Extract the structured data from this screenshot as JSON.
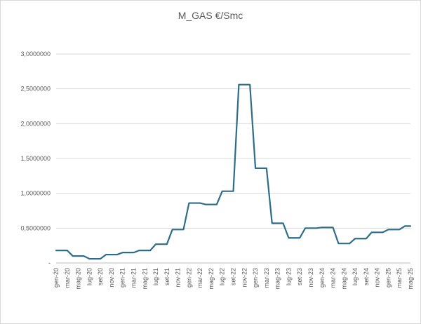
{
  "chart_data": {
    "type": "line",
    "title": "M_GAS €/Smc",
    "xlabel": "",
    "ylabel": "",
    "ylim": [
      0,
      3
    ],
    "yticks": [
      0,
      0.5,
      1,
      1.5,
      2,
      2.5,
      3
    ],
    "ytick_labels": [
      "-",
      "0,5000000",
      "1,0000000",
      "1,5000000",
      "2,0000000",
      "2,5000000",
      "3,0000000"
    ],
    "grid": "horizontal",
    "legend": "none",
    "line_color": "#2e6d8a",
    "x_tick_labels": [
      "gen-20",
      "mar-20",
      "mag-20",
      "lug-20",
      "set-20",
      "nov-20",
      "gen-21",
      "mar-21",
      "mag-21",
      "lug-21",
      "set-21",
      "nov-21",
      "gen-22",
      "mar-22",
      "mag-22",
      "lug-22",
      "set-22",
      "nov-22",
      "gen-23",
      "mar-23",
      "mag-23",
      "lug-23",
      "set-23",
      "nov-23",
      "gen-24",
      "mar-24",
      "mag-24",
      "lug-24",
      "set-24",
      "nov-24",
      "gen-25",
      "mar-25",
      "mag-25"
    ],
    "series": [
      {
        "name": "",
        "values": [
          0.18,
          0.18,
          0.18,
          0.1,
          0.1,
          0.1,
          0.06,
          0.06,
          0.06,
          0.12,
          0.12,
          0.12,
          0.15,
          0.15,
          0.15,
          0.18,
          0.18,
          0.18,
          0.27,
          0.27,
          0.27,
          0.48,
          0.48,
          0.48,
          0.86,
          0.86,
          0.86,
          0.84,
          0.84,
          0.84,
          1.03,
          1.03,
          1.03,
          2.56,
          2.56,
          2.56,
          1.36,
          1.36,
          1.36,
          0.57,
          0.57,
          0.57,
          0.36,
          0.36,
          0.36,
          0.5,
          0.5,
          0.5,
          0.51,
          0.51,
          0.51,
          0.28,
          0.28,
          0.28,
          0.35,
          0.35,
          0.35,
          0.44,
          0.44,
          0.44,
          0.48,
          0.48,
          0.48,
          0.53,
          0.53
        ]
      }
    ]
  }
}
